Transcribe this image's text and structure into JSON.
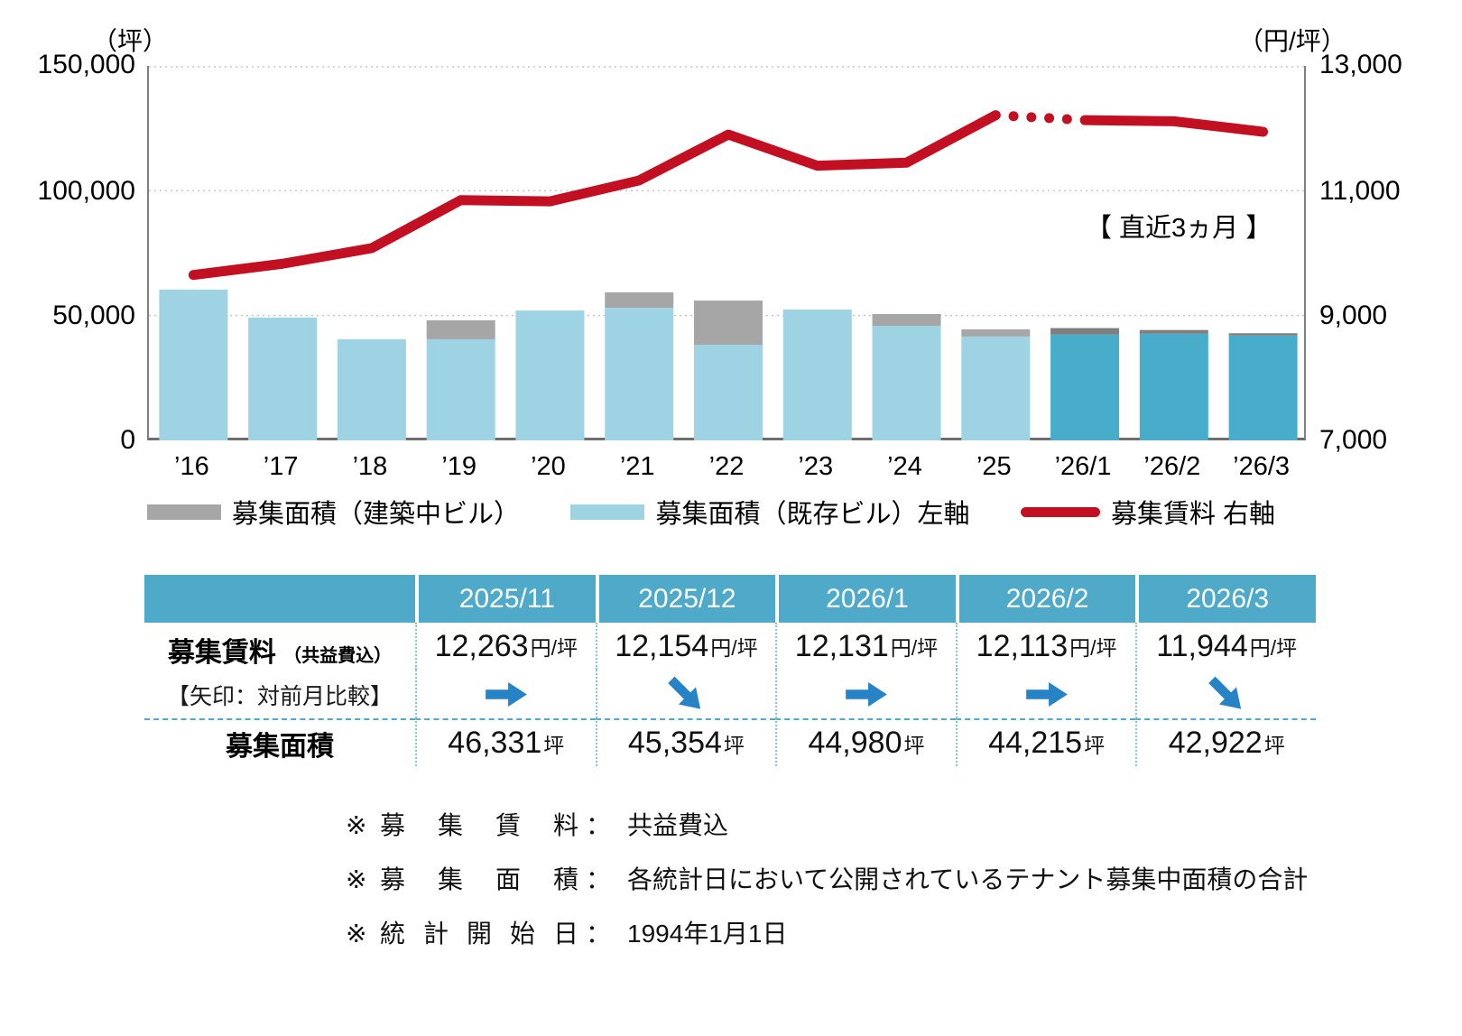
{
  "colors": {
    "bar_existing": "#9DD3E2",
    "bar_existing_recent": "#47ADCB",
    "bar_construction": "#A6A6A6",
    "bar_construction_recent": "#7F7F7F",
    "line": "#C30F22",
    "table_header": "#4FAAC9",
    "arrow": "#2683C6",
    "grid": "#C8C8C8",
    "axis": "#808080",
    "cell_border": "#85C6DC"
  },
  "chart": {
    "left_axis": {
      "unit": "（坪）",
      "ticks": [
        "150,000",
        "100,000",
        "50,000",
        "0"
      ]
    },
    "right_axis": {
      "unit": "（円/坪）",
      "ticks": [
        "13,000",
        "11,000",
        "9,000",
        "7,000"
      ]
    },
    "annotation": "【 直近3ヵ月 】",
    "legend": [
      {
        "label": "募集面積（建築中ビル）",
        "swatch": "gray-bar"
      },
      {
        "label": "募集面積（既存ビル）左軸",
        "swatch": "blue-bar"
      },
      {
        "label": "募集賃料 右軸",
        "swatch": "red-line"
      }
    ]
  },
  "chart_data": {
    "type": "bar+line",
    "categories": [
      "’16",
      "’17",
      "’18",
      "’19",
      "’20",
      "’21",
      "’22",
      "’23",
      "’24",
      "’25",
      "’26/1",
      "’26/2",
      "’26/3"
    ],
    "series": [
      {
        "name": "募集面積（既存ビル）左軸",
        "type": "bar",
        "axis": "left",
        "values": [
          60400,
          49200,
          40500,
          40500,
          52000,
          53100,
          38300,
          52400,
          45900,
          41600,
          42380,
          42715,
          42022
        ]
      },
      {
        "name": "募集面積（建築中ビル）",
        "type": "bar",
        "axis": "left",
        "values": [
          0,
          0,
          0,
          7600,
          0,
          6200,
          17700,
          0,
          4700,
          2900,
          2600,
          1500,
          900
        ]
      },
      {
        "name": "募集賃料 右軸",
        "type": "line",
        "axis": "right",
        "values": [
          9650,
          9830,
          10080,
          10850,
          10830,
          11165,
          11900,
          11400,
          11450,
          12210,
          12131,
          12113,
          11944
        ]
      }
    ],
    "left_ylim": [
      0,
      150000
    ],
    "right_ylim": [
      7000,
      13000
    ],
    "grid": "dotted horizontal",
    "legend_position": "bottom",
    "recent_start_index": 10,
    "dotted_gap": [
      9,
      10
    ],
    "title": "",
    "xlabel": "",
    "ylabel_left": "（坪）",
    "ylabel_right": "（円/坪）"
  },
  "table": {
    "columns": [
      "2025/11",
      "2025/12",
      "2026/1",
      "2026/2",
      "2026/3"
    ],
    "rent_label": "募集賃料",
    "rent_label_sub": "（共益費込）",
    "arrow_label": "【矢印：対前月比較】",
    "rent_values": [
      "12,263",
      "12,154",
      "12,131",
      "12,113",
      "11,944"
    ],
    "rent_unit": "円/坪",
    "arrows": [
      "right",
      "down",
      "right",
      "right",
      "down"
    ],
    "area_label": "募集面積",
    "area_values": [
      "46,331",
      "45,354",
      "44,980",
      "44,215",
      "42,922"
    ],
    "area_unit": "坪"
  },
  "footnotes": {
    "rows": [
      {
        "mark": "※",
        "label": "募 集 賃 料",
        "colon": "：",
        "text": "共益費込"
      },
      {
        "mark": "※",
        "label": "募 集 面 積",
        "colon": "：",
        "text": "各統計日において公開されているテナント募集中面積の合計"
      },
      {
        "mark": "※",
        "label": "統 計 開 始 日",
        "colon": "：",
        "text": "1994年1月1日"
      }
    ]
  }
}
